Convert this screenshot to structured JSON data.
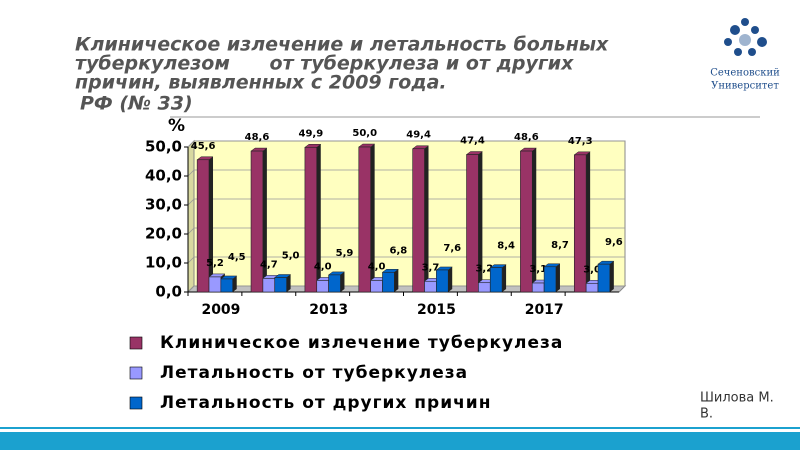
{
  "chart_data": {
    "type": "bar",
    "title_lines": [
      "Клиническое излечение и летальность больных",
      "туберкулезом      от туберкулеза и от других",
      "причин, выявленных с 2009 года.",
      "РФ (№ 33)"
    ],
    "y_unit": "%",
    "categories": [
      "2009",
      null,
      "2013",
      null,
      "2015",
      null,
      "2017",
      null
    ],
    "series": [
      {
        "name": "Клиническое излечение туберкулеза",
        "color": "#993366",
        "values": [
          45.6,
          48.6,
          49.9,
          50.0,
          49.4,
          47.4,
          48.6,
          47.3
        ],
        "value_labels": [
          "45,6",
          "48,6",
          "49,9",
          "50,0",
          "49,4",
          "47,4",
          "48,6",
          "47,3"
        ]
      },
      {
        "name": "Летальность от туберкулеза",
        "color": "#9999ff",
        "values": [
          5.2,
          4.7,
          4.0,
          4.0,
          3.7,
          3.2,
          3.1,
          3.0
        ],
        "value_labels": [
          "5,2",
          "4,7",
          "4,0",
          "4,0",
          "3,7",
          "3,2",
          "3,1",
          "3,0"
        ]
      },
      {
        "name": "Летальность от других причин",
        "color": "#0066cc",
        "values": [
          4.5,
          5.0,
          5.9,
          6.8,
          7.6,
          8.4,
          8.7,
          9.6
        ],
        "value_labels": [
          "4,5",
          "5,0",
          "5,9",
          "6,8",
          "7,6",
          "8,4",
          "8,7",
          "9,6"
        ]
      }
    ],
    "ylim": [
      0,
      50
    ],
    "yticks": [
      {
        "value": 0,
        "label": "0,0"
      },
      {
        "value": 10,
        "label": "10,0"
      },
      {
        "value": 20,
        "label": "20,0"
      },
      {
        "value": 30,
        "label": "30,0"
      },
      {
        "value": 40,
        "label": "40,0"
      },
      {
        "value": 50,
        "label": "50,0"
      }
    ],
    "grid": true
  },
  "author": {
    "line1": "Шилова М.",
    "line2": "В."
  },
  "logo": {
    "line1": "Сеченовский",
    "line2": "Университет"
  }
}
